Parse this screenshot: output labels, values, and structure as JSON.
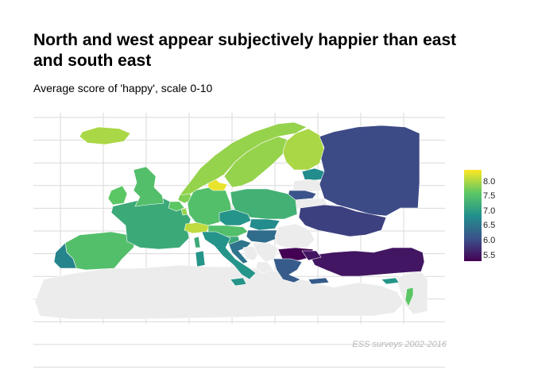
{
  "title": "North and west appear subjectively happier than east and south east",
  "subtitle": "Average score of 'happy', scale 0-10",
  "caption": "ESS surveys 2002-2016",
  "legend": {
    "ticks": [
      "8.0",
      "7.5",
      "7.0",
      "6.5",
      "6.0",
      "5.5"
    ],
    "min": 5.3,
    "max": 8.4,
    "palette": [
      "#440154",
      "#3b528b",
      "#21908c",
      "#5dc863",
      "#fde725"
    ]
  },
  "colors": {
    "no_data": "#ececec",
    "grid": "#d9d9d9"
  },
  "chart_data": {
    "type": "choropleth",
    "title": "North and west appear subjectively happier than east and south east",
    "subtitle": "Average score of 'happy', scale 0-10",
    "scale": "viridis",
    "legend_range": [
      5.5,
      8.0
    ],
    "regions": [
      {
        "name": "Iceland",
        "value": 8.0
      },
      {
        "name": "Norway",
        "value": 7.9
      },
      {
        "name": "Sweden",
        "value": 7.9
      },
      {
        "name": "Finland",
        "value": 8.0
      },
      {
        "name": "Denmark",
        "value": 8.3
      },
      {
        "name": "Estonia",
        "value": 6.8
      },
      {
        "name": "Latvia",
        "value": null
      },
      {
        "name": "Lithuania",
        "value": 6.1
      },
      {
        "name": "Russia",
        "value": 6.0
      },
      {
        "name": "Belarus",
        "value": null
      },
      {
        "name": "Ukraine",
        "value": 5.9
      },
      {
        "name": "Poland",
        "value": 7.3
      },
      {
        "name": "Germany",
        "value": 7.5
      },
      {
        "name": "Netherlands",
        "value": 7.8
      },
      {
        "name": "Belgium",
        "value": 7.6
      },
      {
        "name": "Luxembourg",
        "value": 7.9
      },
      {
        "name": "United Kingdom",
        "value": 7.5
      },
      {
        "name": "Ireland",
        "value": 7.6
      },
      {
        "name": "France",
        "value": 7.2
      },
      {
        "name": "Switzerland",
        "value": 8.1
      },
      {
        "name": "Austria",
        "value": 7.5
      },
      {
        "name": "Czechia",
        "value": 6.9
      },
      {
        "name": "Slovakia",
        "value": 6.8
      },
      {
        "name": "Hungary",
        "value": 6.4
      },
      {
        "name": "Slovenia",
        "value": 7.2
      },
      {
        "name": "Croatia",
        "value": 6.5
      },
      {
        "name": "Italy",
        "value": 6.9
      },
      {
        "name": "Spain",
        "value": 7.5
      },
      {
        "name": "Portugal",
        "value": 6.7
      },
      {
        "name": "Romania",
        "value": null
      },
      {
        "name": "Bulgaria",
        "value": 5.3
      },
      {
        "name": "Serbia",
        "value": null
      },
      {
        "name": "Bosnia",
        "value": null
      },
      {
        "name": "Albania",
        "value": null
      },
      {
        "name": "Greece",
        "value": 6.2
      },
      {
        "name": "Turkey",
        "value": 5.5
      },
      {
        "name": "Cyprus",
        "value": 6.9
      },
      {
        "name": "Israel",
        "value": 7.6
      },
      {
        "name": "North Africa",
        "value": null
      }
    ]
  }
}
